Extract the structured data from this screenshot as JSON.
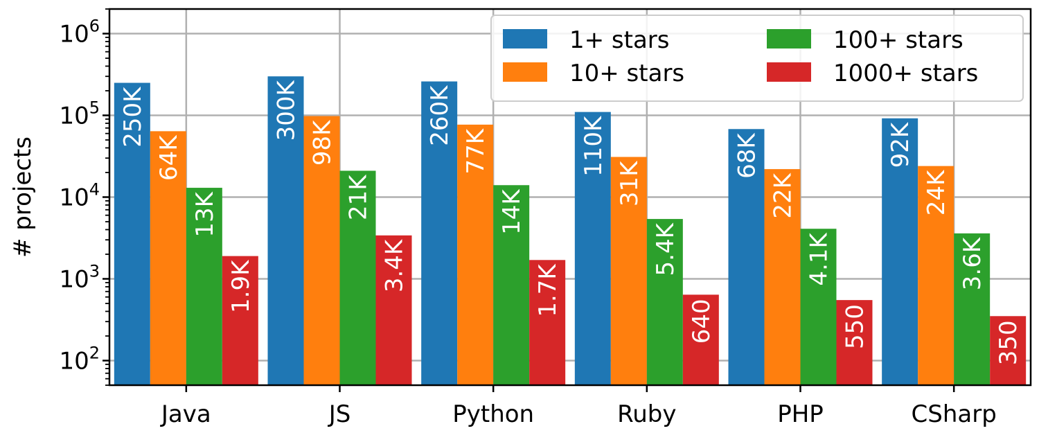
{
  "chart_data": {
    "type": "bar",
    "log_scale_y": true,
    "ylabel": "# projects",
    "xlabel": "",
    "ylim": [
      50,
      2000000
    ],
    "y_ticks": [
      {
        "value": 100,
        "base": "10",
        "exp": "2"
      },
      {
        "value": 1000,
        "base": "10",
        "exp": "3"
      },
      {
        "value": 10000,
        "base": "10",
        "exp": "4"
      },
      {
        "value": 100000,
        "base": "10",
        "exp": "5"
      },
      {
        "value": 1000000,
        "base": "10",
        "exp": "6"
      }
    ],
    "grid": true,
    "legend_position": "top-right",
    "categories": [
      "Java",
      "JS",
      "Python",
      "Ruby",
      "PHP",
      "CSharp"
    ],
    "series": [
      {
        "name": "1+ stars",
        "color": "#1f77b4",
        "values": [
          250000,
          300000,
          260000,
          110000,
          68000,
          92000
        ],
        "labels": [
          "250K",
          "300K",
          "260K",
          "110K",
          "68K",
          "92K"
        ]
      },
      {
        "name": "10+ stars",
        "color": "#ff7f0e",
        "values": [
          64000,
          98000,
          77000,
          31000,
          22000,
          24000
        ],
        "labels": [
          "64K",
          "98K",
          "77K",
          "31K",
          "22K",
          "24K"
        ]
      },
      {
        "name": "100+ stars",
        "color": "#2ca02c",
        "values": [
          13000,
          21000,
          14000,
          5400,
          4100,
          3600
        ],
        "labels": [
          "13K",
          "21K",
          "14K",
          "5.4K",
          "4.1K",
          "3.6K"
        ]
      },
      {
        "name": "1000+ stars",
        "color": "#d62728",
        "values": [
          1900,
          3400,
          1700,
          640,
          550,
          350
        ],
        "labels": [
          "1.9K",
          "3.4K",
          "1.7K",
          "640",
          "550",
          "350"
        ]
      }
    ]
  }
}
